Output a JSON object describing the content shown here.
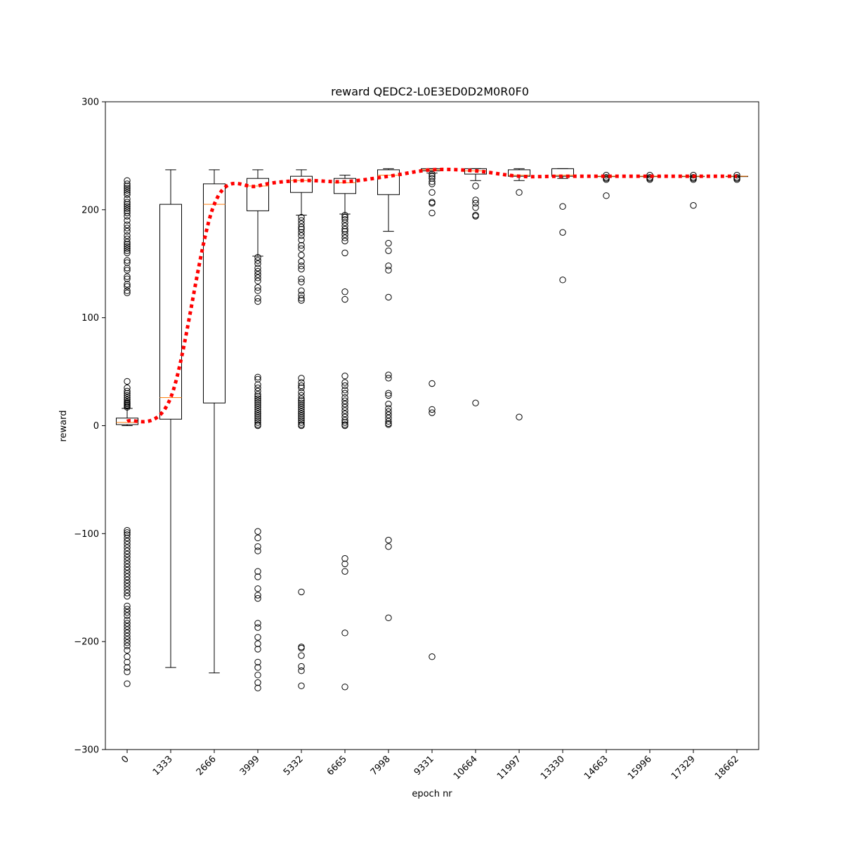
{
  "chart_data": {
    "type": "box",
    "title": "reward QEDC2-L0E3ED0D2M0R0F0",
    "xlabel": "epoch nr",
    "ylabel": "reward",
    "ylim": [
      -300,
      300
    ],
    "yticks": [
      -300,
      -200,
      -100,
      0,
      100,
      200,
      300
    ],
    "yticklabels": [
      "−300",
      "−200",
      "−100",
      "0",
      "100",
      "200",
      "300"
    ],
    "categories": [
      "0",
      "1333",
      "2666",
      "3999",
      "5332",
      "6665",
      "7998",
      "9331",
      "10664",
      "11997",
      "13330",
      "14663",
      "15996",
      "17329",
      "18662"
    ],
    "boxes": [
      {
        "q1": 1,
        "median": 3,
        "q3": 7,
        "whislo": 0,
        "whishi": 16,
        "fliers": [
          227,
          224,
          222,
          220,
          218,
          216,
          214,
          210,
          207,
          205,
          203,
          201,
          199,
          197,
          194,
          190,
          186,
          183,
          180,
          176,
          173,
          170,
          168,
          166,
          164,
          162,
          160,
          153,
          151,
          146,
          144,
          138,
          136,
          131,
          129,
          125,
          123,
          41,
          35,
          32,
          30,
          28,
          26,
          24,
          22,
          21,
          20,
          19,
          18,
          17,
          -97,
          -99,
          -101,
          -104,
          -107,
          -110,
          -113,
          -116,
          -119,
          -122,
          -125,
          -128,
          -131,
          -134,
          -137,
          -140,
          -143,
          -146,
          -149,
          -152,
          -155,
          -158,
          -167,
          -170,
          -173,
          -176,
          -180,
          -183,
          -186,
          -189,
          -192,
          -195,
          -198,
          -201,
          -204,
          -208,
          -214,
          -219,
          -224,
          -228,
          -239
        ]
      },
      {
        "q1": 6,
        "median": 26,
        "q3": 205,
        "whislo": -224,
        "whishi": 237,
        "fliers": []
      },
      {
        "q1": 21,
        "median": 205,
        "q3": 224,
        "whislo": -229,
        "whishi": 237,
        "fliers": []
      },
      {
        "q1": 199,
        "median": 222,
        "q3": 229,
        "whislo": 157,
        "whishi": 237,
        "fliers": [
          156,
          153,
          150,
          146,
          143,
          140,
          137,
          134,
          128,
          125,
          118,
          115,
          45,
          43,
          38,
          35,
          32,
          29,
          27,
          25,
          23,
          21,
          19,
          17,
          15,
          13,
          11,
          9,
          7,
          5,
          3,
          1,
          0,
          -98,
          -104,
          -112,
          -116,
          -135,
          -140,
          -151,
          -157,
          -160,
          -183,
          -187,
          -196,
          -202,
          -207,
          -219,
          -224,
          -231,
          -238,
          -243
        ]
      },
      {
        "q1": 216,
        "median": 227,
        "q3": 231,
        "whislo": 195,
        "whishi": 237,
        "fliers": [
          193,
          190,
          187,
          184,
          182,
          179,
          176,
          172,
          167,
          164,
          158,
          152,
          148,
          145,
          136,
          133,
          125,
          121,
          118,
          116,
          44,
          40,
          37,
          35,
          31,
          28,
          25,
          23,
          21,
          19,
          17,
          15,
          13,
          11,
          9,
          7,
          5,
          3,
          1,
          0,
          -154,
          -205,
          -206,
          -213,
          -223,
          -227,
          -241
        ]
      },
      {
        "q1": 215,
        "median": 225,
        "q3": 229,
        "whislo": 196,
        "whishi": 232,
        "fliers": [
          195,
          193,
          191,
          188,
          185,
          182,
          180,
          177,
          174,
          171,
          160,
          124,
          117,
          46,
          40,
          37,
          33,
          30,
          26,
          23,
          20,
          17,
          14,
          11,
          8,
          5,
          3,
          1,
          0,
          -123,
          -128,
          -135,
          -192,
          -242
        ]
      },
      {
        "q1": 214,
        "median": 232,
        "q3": 237,
        "whislo": 180,
        "whishi": 238,
        "fliers": [
          169,
          162,
          148,
          144,
          119,
          47,
          44,
          30,
          28,
          20,
          16,
          13,
          10,
          7,
          4,
          2,
          1,
          -106,
          -112,
          -178
        ]
      },
      {
        "q1": 236,
        "median": 237,
        "q3": 238,
        "whislo": 234,
        "whishi": 238,
        "fliers": [
          233,
          231,
          229,
          226,
          224,
          216,
          207,
          206,
          197,
          39,
          15,
          12,
          -214
        ]
      },
      {
        "q1": 233,
        "median": 236,
        "q3": 238,
        "whislo": 227,
        "whishi": 238,
        "fliers": [
          222,
          209,
          206,
          202,
          195,
          194,
          21
        ]
      },
      {
        "q1": 231,
        "median": 232,
        "q3": 237,
        "whislo": 227,
        "whishi": 238,
        "fliers": [
          216,
          8
        ]
      },
      {
        "q1": 231,
        "median": 232,
        "q3": 238,
        "whislo": 229,
        "whishi": 238,
        "fliers": [
          203,
          179,
          135
        ]
      },
      {
        "q1": 231,
        "median": 231,
        "q3": 231,
        "whislo": 231,
        "whishi": 231,
        "fliers": [
          232,
          230,
          229,
          228,
          213
        ]
      },
      {
        "q1": 231,
        "median": 231,
        "q3": 231,
        "whislo": 231,
        "whishi": 231,
        "fliers": [
          232,
          230,
          229,
          228
        ]
      },
      {
        "q1": 231,
        "median": 231,
        "q3": 231,
        "whislo": 231,
        "whishi": 231,
        "fliers": [
          232,
          230,
          229,
          228,
          204
        ]
      },
      {
        "q1": 231,
        "median": 231,
        "q3": 231,
        "whislo": 231,
        "whishi": 231,
        "fliers": [
          232,
          230,
          229,
          228
        ]
      }
    ],
    "mean_line": {
      "style": "dotted",
      "values": [
        4,
        26,
        205,
        222,
        227,
        226,
        231,
        237,
        236,
        231,
        231,
        231,
        231,
        231,
        231
      ]
    },
    "colors": {
      "box": "#000000",
      "median": "#ff7f0e",
      "mean_line": "#ff0000"
    },
    "grid": false,
    "legend": "none"
  }
}
